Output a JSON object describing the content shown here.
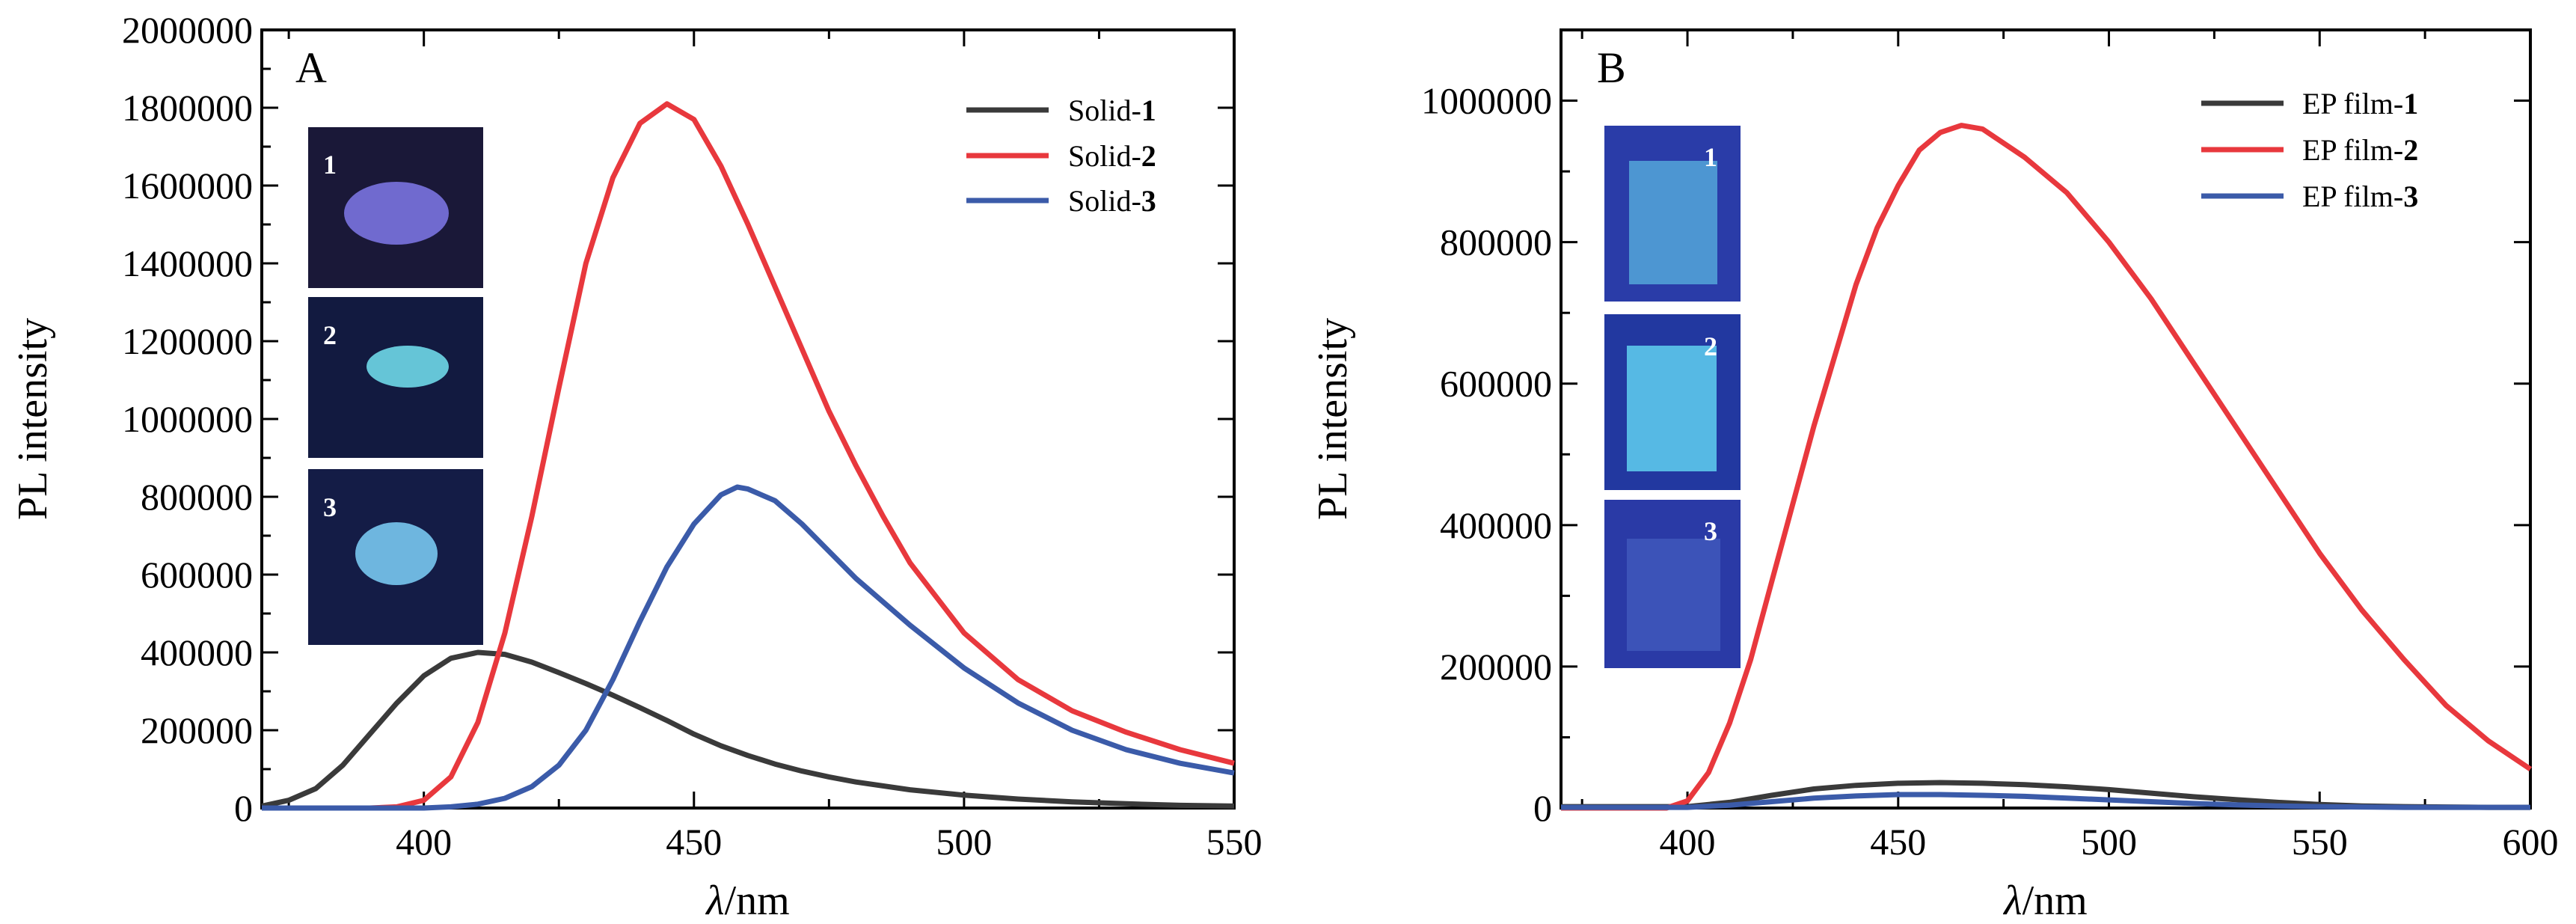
{
  "chart_data": [
    {
      "type": "line",
      "panel_label": "A",
      "xlabel_prefix": "λ",
      "xlabel_suffix": "/nm",
      "ylabel": "PL intensity",
      "xlim": [
        370,
        550
      ],
      "ylim": [
        0,
        2000000
      ],
      "x_ticks": [
        400,
        450,
        500,
        550
      ],
      "y_ticks": [
        0,
        200000,
        400000,
        600000,
        800000,
        1000000,
        1200000,
        1400000,
        1600000,
        1800000,
        2000000
      ],
      "y_tick_labels": [
        "0",
        "200000",
        "400000",
        "600000",
        "800000",
        "1000000",
        "1200000",
        "1400000",
        "1600000",
        "1800000",
        "2000000"
      ],
      "x_tick_labels": [
        "400",
        "450",
        "500",
        "550"
      ],
      "legend_position": "top-right",
      "series": [
        {
          "name_prefix": "Solid-",
          "name_bold": "1",
          "color": "#3a3a3a",
          "x": [
            370,
            375,
            380,
            385,
            390,
            395,
            400,
            405,
            410,
            415,
            420,
            425,
            430,
            435,
            440,
            445,
            450,
            455,
            460,
            465,
            470,
            475,
            480,
            490,
            500,
            510,
            520,
            530,
            540,
            550
          ],
          "y": [
            5000,
            20000,
            50000,
            110000,
            190000,
            270000,
            340000,
            385000,
            400000,
            395000,
            375000,
            348000,
            320000,
            290000,
            258000,
            225000,
            190000,
            160000,
            135000,
            113000,
            95000,
            80000,
            67000,
            47000,
            33000,
            23000,
            16000,
            11000,
            7000,
            5000
          ]
        },
        {
          "name_prefix": "Solid-",
          "name_bold": "2",
          "color": "#e8383d",
          "x": [
            370,
            390,
            395,
            400,
            405,
            410,
            415,
            420,
            425,
            430,
            435,
            440,
            445,
            450,
            455,
            460,
            465,
            470,
            475,
            480,
            485,
            490,
            500,
            510,
            520,
            530,
            540,
            550
          ],
          "y": [
            0,
            0,
            3000,
            20000,
            80000,
            220000,
            450000,
            750000,
            1080000,
            1400000,
            1620000,
            1760000,
            1810000,
            1770000,
            1650000,
            1500000,
            1340000,
            1180000,
            1020000,
            880000,
            750000,
            630000,
            450000,
            330000,
            250000,
            195000,
            150000,
            115000
          ]
        },
        {
          "name_prefix": "Solid-",
          "name_bold": "3",
          "color": "#3b5ba9",
          "x": [
            370,
            400,
            405,
            410,
            415,
            420,
            425,
            430,
            435,
            440,
            445,
            450,
            455,
            458,
            460,
            465,
            470,
            475,
            480,
            490,
            500,
            510,
            520,
            530,
            540,
            550
          ],
          "y": [
            0,
            0,
            3000,
            10000,
            25000,
            55000,
            110000,
            200000,
            330000,
            480000,
            620000,
            730000,
            805000,
            825000,
            820000,
            790000,
            730000,
            660000,
            590000,
            470000,
            360000,
            270000,
            200000,
            150000,
            115000,
            90000
          ]
        }
      ],
      "insets": [
        {
          "number": "1",
          "bg": "#1a1838",
          "spot_color": "#7a73e0"
        },
        {
          "number": "2",
          "bg": "#121a40",
          "spot_color": "#6fd8e8"
        },
        {
          "number": "3",
          "bg": "#141c46",
          "spot_color": "#78c8f0"
        }
      ]
    },
    {
      "type": "line",
      "panel_label": "B",
      "xlabel_prefix": "λ",
      "xlabel_suffix": "/nm",
      "ylabel": "PL intensity",
      "xlim": [
        370,
        600
      ],
      "ylim": [
        0,
        1100000
      ],
      "x_ticks": [
        400,
        450,
        500,
        550,
        600
      ],
      "x_tick_labels": [
        "400",
        "450",
        "500",
        "550",
        "600"
      ],
      "y_ticks": [
        0,
        200000,
        400000,
        600000,
        800000,
        1000000
      ],
      "y_tick_labels": [
        "0",
        "200000",
        "400000",
        "600000",
        "800000",
        "1000000"
      ],
      "legend_position": "top-right",
      "series": [
        {
          "name_prefix": "EP film-",
          "name_bold": "1",
          "color": "#3a3a3a",
          "x": [
            370,
            400,
            410,
            420,
            430,
            440,
            450,
            460,
            470,
            480,
            490,
            500,
            510,
            520,
            530,
            540,
            550,
            560,
            570,
            580,
            590,
            600
          ],
          "y": [
            2000,
            2000,
            8000,
            18000,
            27000,
            32000,
            35000,
            36000,
            35000,
            33000,
            30000,
            26000,
            21000,
            16000,
            12000,
            8000,
            5000,
            3000,
            2000,
            1500,
            1000,
            1000
          ]
        },
        {
          "name_prefix": "EP film-",
          "name_bold": "2",
          "color": "#e8383d",
          "x": [
            370,
            395,
            400,
            405,
            410,
            415,
            420,
            425,
            430,
            435,
            440,
            445,
            450,
            455,
            460,
            465,
            470,
            475,
            480,
            490,
            500,
            510,
            520,
            530,
            540,
            550,
            560,
            570,
            580,
            590,
            600
          ],
          "y": [
            0,
            0,
            10000,
            50000,
            120000,
            210000,
            320000,
            430000,
            540000,
            640000,
            740000,
            820000,
            880000,
            930000,
            955000,
            965000,
            960000,
            940000,
            920000,
            870000,
            800000,
            720000,
            630000,
            540000,
            450000,
            360000,
            280000,
            210000,
            145000,
            95000,
            55000
          ]
        },
        {
          "name_prefix": "EP film-",
          "name_bold": "3",
          "color": "#3b5ba9",
          "x": [
            370,
            400,
            410,
            420,
            430,
            440,
            450,
            460,
            470,
            480,
            490,
            500,
            510,
            520,
            530,
            540,
            550,
            560,
            570,
            580,
            590,
            600
          ],
          "y": [
            1000,
            1000,
            4000,
            9000,
            14000,
            17000,
            19000,
            19000,
            18000,
            16500,
            14000,
            11500,
            9000,
            6500,
            4500,
            3000,
            2000,
            1500,
            1000,
            1000,
            1000,
            1000
          ]
        }
      ],
      "insets": [
        {
          "number": "1",
          "bg": "#2a3ca8",
          "spot_color": "#5ab4e0"
        },
        {
          "number": "2",
          "bg": "#2238a0",
          "spot_color": "#5fd0f0"
        },
        {
          "number": "3",
          "bg": "#2a3aa6",
          "spot_color": "#4a64c4"
        }
      ]
    }
  ]
}
